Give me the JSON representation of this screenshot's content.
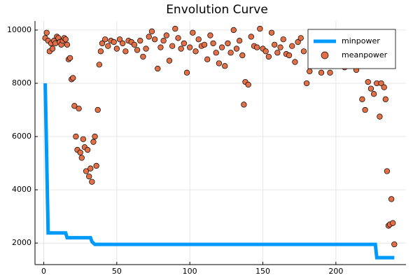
{
  "chart_data": {
    "type": "line-scatter",
    "title": "Envolution Curve",
    "xlim": [
      -6,
      248
    ],
    "xticks": [
      0,
      50,
      100,
      150,
      200
    ],
    "ylim": [
      1190,
      10340
    ],
    "yticks": [
      2000,
      4000,
      6000,
      8000,
      10000
    ],
    "grid": true,
    "legend": "top-right",
    "series": [
      {
        "name": "minpower",
        "kind": "line",
        "color": "#009AFA",
        "x": [
          1,
          3,
          15,
          16,
          32,
          33,
          35,
          227,
          228,
          240
        ],
        "values": [
          8000,
          2380,
          2380,
          2200,
          2200,
          2050,
          1950,
          1950,
          1450,
          1450
        ]
      },
      {
        "name": "meanpower",
        "kind": "scatter",
        "color": "#E26F46",
        "x": [
          1,
          2,
          3,
          4,
          5,
          6,
          7,
          8,
          9,
          10,
          11,
          12,
          13,
          14,
          15,
          16,
          17,
          18,
          19,
          20,
          21,
          22,
          23,
          24,
          25,
          26,
          27,
          28,
          29,
          30,
          31,
          32,
          33,
          34,
          35,
          36,
          37,
          38,
          39,
          40,
          42,
          44,
          46,
          48,
          50,
          52,
          54,
          56,
          58,
          60,
          62,
          64,
          66,
          68,
          70,
          72,
          74,
          76,
          78,
          80,
          82,
          84,
          86,
          88,
          90,
          92,
          94,
          96,
          98,
          100,
          102,
          104,
          106,
          108,
          110,
          112,
          114,
          116,
          118,
          120,
          122,
          124,
          126,
          128,
          130,
          132,
          134,
          136,
          138,
          140,
          142,
          144,
          146,
          148,
          150,
          152,
          154,
          156,
          158,
          160,
          162,
          164,
          166,
          168,
          170,
          172,
          174,
          176,
          178,
          180,
          182,
          184,
          186,
          188,
          190,
          192,
          194,
          196,
          198,
          200,
          202,
          204,
          206,
          208,
          210,
          212,
          214,
          216,
          218,
          220,
          222,
          224,
          226,
          228,
          230,
          137,
          231,
          233,
          234,
          235,
          236,
          237,
          238,
          239,
          240
        ],
        "values": [
          9700,
          9900,
          9600,
          9200,
          9500,
          9300,
          9600,
          9500,
          9750,
          9700,
          9550,
          9450,
          9600,
          9700,
          9650,
          9450,
          8900,
          8950,
          8150,
          8200,
          7150,
          6000,
          5500,
          7050,
          5400,
          5200,
          5900,
          5600,
          4700,
          5500,
          4500,
          4800,
          4300,
          5800,
          6000,
          4900,
          7000,
          8700,
          9200,
          9500,
          9650,
          9400,
          9600,
          9550,
          9300,
          9650,
          9500,
          9200,
          9600,
          9550,
          9450,
          9250,
          9600,
          9000,
          9300,
          9750,
          9950,
          9650,
          8550,
          9350,
          9600,
          9800,
          8850,
          9400,
          10050,
          9700,
          9300,
          9500,
          8400,
          9350,
          9900,
          9200,
          9650,
          9400,
          9450,
          8900,
          9800,
          9500,
          9150,
          8750,
          9350,
          8650,
          9500,
          9150,
          10000,
          9300,
          9600,
          9050,
          8050,
          7950,
          9750,
          9400,
          9350,
          10050,
          9300,
          9200,
          9000,
          9900,
          9450,
          9150,
          9350,
          9650,
          9100,
          9050,
          9400,
          8800,
          9550,
          9700,
          9200,
          8000,
          8450,
          8700,
          9300,
          9100,
          8400,
          8850,
          9100,
          8400,
          8650,
          9500,
          8700,
          9600,
          8600,
          8850,
          9350,
          9000,
          8500,
          8800,
          7400,
          7000,
          8050,
          7800,
          7600,
          8000,
          6750,
          7200,
          8000,
          7850,
          7400,
          4700,
          2650,
          2700,
          3650,
          2750,
          1950
        ]
      }
    ]
  }
}
